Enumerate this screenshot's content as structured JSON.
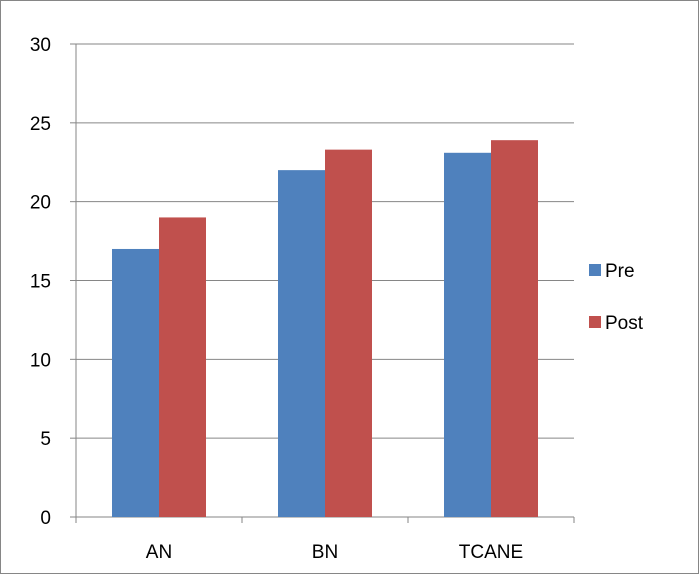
{
  "chart_data": {
    "type": "bar",
    "categories": [
      "AN",
      "BN",
      "TCANE"
    ],
    "series": [
      {
        "name": "Pre",
        "values": [
          17,
          22,
          23.1
        ],
        "color": "#4F81BD"
      },
      {
        "name": "Post",
        "values": [
          19,
          23.3,
          23.9
        ],
        "color": "#C0504D"
      }
    ],
    "yticks": [
      0,
      5,
      10,
      15,
      20,
      25,
      30
    ],
    "ylim": [
      0,
      30
    ],
    "grid": true,
    "legend_position": "right",
    "title": "",
    "xlabel": "",
    "ylabel": ""
  }
}
